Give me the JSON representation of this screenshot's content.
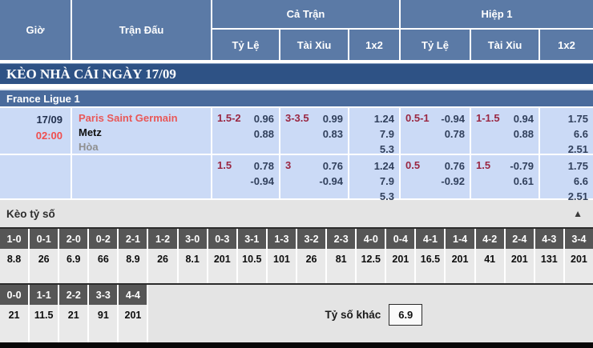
{
  "colors": {
    "header_blue": "#5b7aa6",
    "title_bar_blue": "#2e5285",
    "league_bar_blue": "#4a6b9c",
    "cell_blue": "#cbdaf6",
    "team_red": "#e95858",
    "handicap_red": "#9a2742",
    "odds_navy": "#31405c",
    "score_tile_gray": "#565656"
  },
  "header": {
    "col_time": "Giờ",
    "col_match": "Trận Đấu",
    "group_full": "Cả Trận",
    "group_half": "Hiệp 1",
    "sub_rate": "Tỷ Lệ",
    "sub_ou": "Tài Xiu",
    "sub_1x2": "1x2"
  },
  "title_bar": {
    "text": "KÈO NHÀ CÁI NGÀY 17/09"
  },
  "league_bar": {
    "text": "France Ligue 1"
  },
  "match": {
    "date": "17/09",
    "time": "02:00",
    "home": "Paris Saint Germain",
    "away": "Metz",
    "draw": "Hòa"
  },
  "odds_rows": [
    {
      "full_hdp": {
        "line": "1.5-2",
        "over": "0.96",
        "under": "0.88"
      },
      "full_ou": {
        "line": "3-3.5",
        "over": "0.99",
        "under": "0.83"
      },
      "full_1x2": [
        "1.24",
        "7.9",
        "5.3"
      ],
      "half_hdp": {
        "line": "0.5-1",
        "over": "-0.94",
        "under": "0.78"
      },
      "half_ou": {
        "line": "1-1.5",
        "over": "0.94",
        "under": "0.88"
      },
      "half_1x2": [
        "1.75",
        "6.6",
        "2.51"
      ]
    },
    {
      "full_hdp": {
        "line": "1.5",
        "over": "0.78",
        "under": "-0.94"
      },
      "full_ou": {
        "line": "3",
        "over": "0.76",
        "under": "-0.94"
      },
      "full_1x2": [
        "1.24",
        "7.9",
        "5.3"
      ],
      "half_hdp": {
        "line": "0.5",
        "over": "0.76",
        "under": "-0.92"
      },
      "half_ou": {
        "line": "1.5",
        "over": "-0.79",
        "under": "0.61"
      },
      "half_1x2": [
        "1.75",
        "6.6",
        "2.51"
      ]
    }
  ],
  "score_section": {
    "title": "Kèo tỷ số",
    "collapse_icon": "▲",
    "scores_main": [
      {
        "score": "1-0",
        "odds": "8.8"
      },
      {
        "score": "0-1",
        "odds": "26"
      },
      {
        "score": "2-0",
        "odds": "6.9"
      },
      {
        "score": "0-2",
        "odds": "66"
      },
      {
        "score": "2-1",
        "odds": "8.9"
      },
      {
        "score": "1-2",
        "odds": "26"
      },
      {
        "score": "3-0",
        "odds": "8.1"
      },
      {
        "score": "0-3",
        "odds": "201"
      },
      {
        "score": "3-1",
        "odds": "10.5"
      },
      {
        "score": "1-3",
        "odds": "101"
      },
      {
        "score": "3-2",
        "odds": "26"
      },
      {
        "score": "2-3",
        "odds": "81"
      },
      {
        "score": "4-0",
        "odds": "12.5"
      },
      {
        "score": "0-4",
        "odds": "201"
      },
      {
        "score": "4-1",
        "odds": "16.5"
      },
      {
        "score": "1-4",
        "odds": "201"
      },
      {
        "score": "4-2",
        "odds": "41"
      },
      {
        "score": "2-4",
        "odds": "201"
      },
      {
        "score": "4-3",
        "odds": "131"
      },
      {
        "score": "3-4",
        "odds": "201"
      }
    ],
    "scores_draw": [
      {
        "score": "0-0",
        "odds": "21"
      },
      {
        "score": "1-1",
        "odds": "11.5"
      },
      {
        "score": "2-2",
        "odds": "21"
      },
      {
        "score": "3-3",
        "odds": "91"
      },
      {
        "score": "4-4",
        "odds": "201"
      }
    ],
    "other_label": "Tỷ số khác",
    "other_value": "6.9"
  }
}
